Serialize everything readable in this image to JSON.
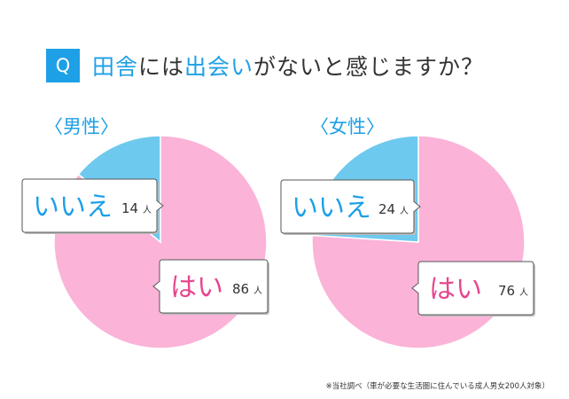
{
  "question_badge": "Q",
  "question_parts": [
    {
      "text": "田舎",
      "highlight": true
    },
    {
      "text": "には",
      "highlight": false
    },
    {
      "text": "出会い",
      "highlight": true
    },
    {
      "text": "がないと感じますか？",
      "highlight": false
    }
  ],
  "footnote": "※当社調べ（車が必要な生活圏に住んでいる成人男女200人対象）",
  "colors": {
    "yes": "#fbb3d8",
    "no": "#6ec9ee",
    "yes_text": "#e6468e",
    "no_text": "#1ea0e6",
    "heading": "#1ea0e6"
  },
  "unit": "人",
  "chart_data": [
    {
      "type": "pie",
      "title": "〈男性〉",
      "slices": [
        {
          "label": "はい",
          "value": 86
        },
        {
          "label": "いいえ",
          "value": 14
        }
      ]
    },
    {
      "type": "pie",
      "title": "〈女性〉",
      "slices": [
        {
          "label": "はい",
          "value": 76
        },
        {
          "label": "いいえ",
          "value": 24
        }
      ]
    }
  ]
}
